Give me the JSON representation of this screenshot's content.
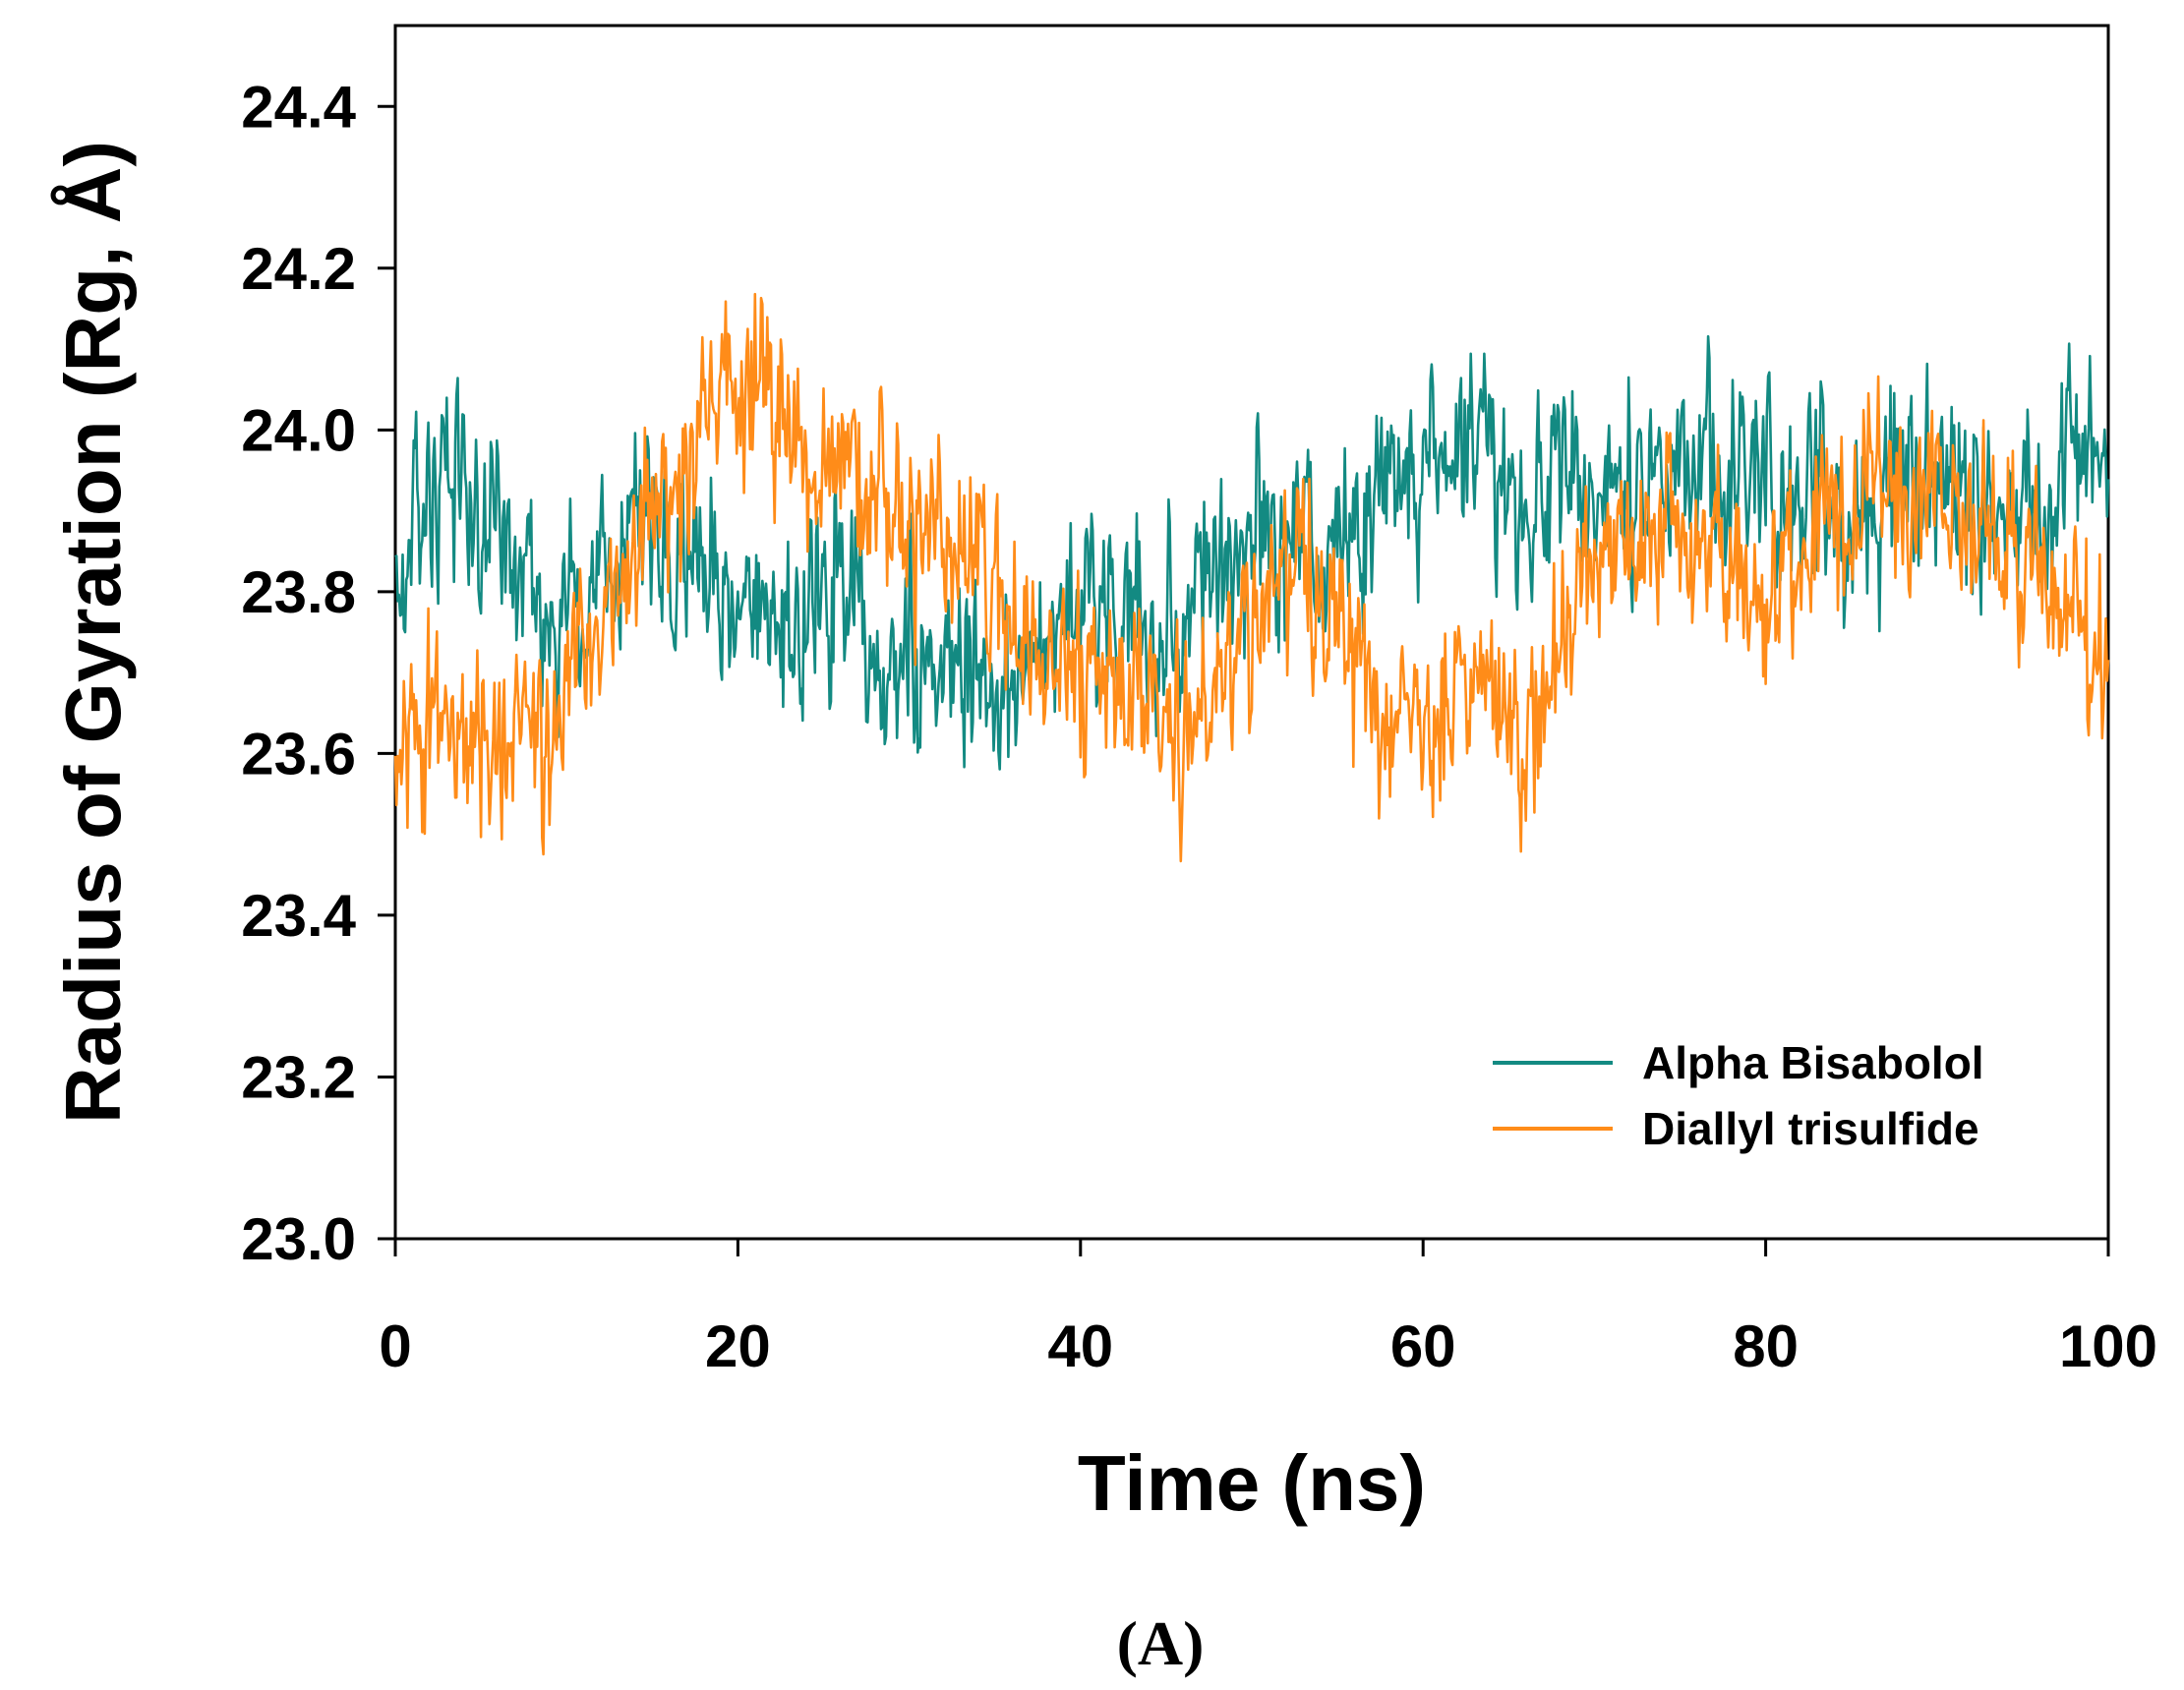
{
  "chart_data": {
    "type": "line",
    "title": "",
    "xlabel": "Time (ns)",
    "ylabel": "Radius of Gyration (Rg, Å)",
    "xlim": [
      0,
      100
    ],
    "ylim": [
      23.0,
      24.5
    ],
    "xticks": [
      "0",
      "20",
      "40",
      "60",
      "80",
      "100"
    ],
    "yticks": [
      "23.0",
      "23.2",
      "23.4",
      "23.6",
      "23.8",
      "24.0",
      "24.2",
      "24.4"
    ],
    "grid": false,
    "legend_position": "bottom-right",
    "panel_label": "(A)",
    "series": [
      {
        "name": "Alpha Bisabolol",
        "color": "#138a82",
        "x": [
          0,
          2,
          4,
          6,
          8,
          10,
          12,
          14,
          16,
          18,
          20,
          22,
          24,
          26,
          28,
          30,
          32,
          34,
          36,
          38,
          40,
          42,
          44,
          46,
          48,
          50,
          52,
          54,
          56,
          58,
          60,
          62,
          64,
          66,
          68,
          70,
          72,
          74,
          76,
          78,
          80,
          82,
          84,
          86,
          88,
          90,
          92,
          94,
          96,
          98,
          100
        ],
        "y": [
          23.78,
          23.96,
          23.92,
          23.85,
          23.82,
          23.78,
          23.79,
          23.87,
          23.9,
          23.84,
          23.8,
          23.77,
          23.79,
          23.82,
          23.74,
          23.73,
          23.71,
          23.69,
          23.68,
          23.76,
          23.8,
          23.76,
          23.75,
          23.79,
          23.86,
          23.88,
          23.86,
          23.84,
          23.85,
          23.9,
          23.94,
          23.98,
          23.97,
          23.92,
          23.9,
          23.9,
          23.92,
          23.93,
          23.95,
          23.97,
          23.93,
          23.9,
          23.88,
          23.9,
          23.93,
          23.95,
          23.91,
          23.87,
          23.89,
          23.97,
          23.93
        ]
      },
      {
        "name": "Diallyl trisulfide",
        "color": "#ff8c19",
        "x": [
          0,
          2,
          4,
          6,
          8,
          10,
          12,
          14,
          16,
          18,
          20,
          22,
          24,
          26,
          28,
          30,
          32,
          34,
          36,
          38,
          40,
          42,
          44,
          46,
          48,
          50,
          52,
          54,
          56,
          58,
          60,
          62,
          64,
          66,
          68,
          70,
          72,
          74,
          76,
          78,
          80,
          82,
          84,
          86,
          88,
          90,
          92,
          94,
          96,
          98,
          100
        ],
        "y": [
          23.62,
          23.66,
          23.64,
          23.62,
          23.58,
          23.66,
          23.78,
          23.86,
          23.92,
          24.02,
          24.06,
          24.02,
          23.96,
          23.98,
          23.92,
          23.86,
          23.87,
          23.86,
          23.76,
          23.72,
          23.72,
          23.65,
          23.64,
          23.62,
          23.68,
          23.77,
          23.84,
          23.8,
          23.72,
          23.66,
          23.62,
          23.68,
          23.7,
          23.6,
          23.74,
          23.84,
          23.86,
          23.88,
          23.86,
          23.82,
          23.78,
          23.84,
          23.88,
          23.92,
          23.9,
          23.94,
          23.9,
          23.86,
          23.82,
          23.78,
          23.7
        ]
      }
    ]
  }
}
